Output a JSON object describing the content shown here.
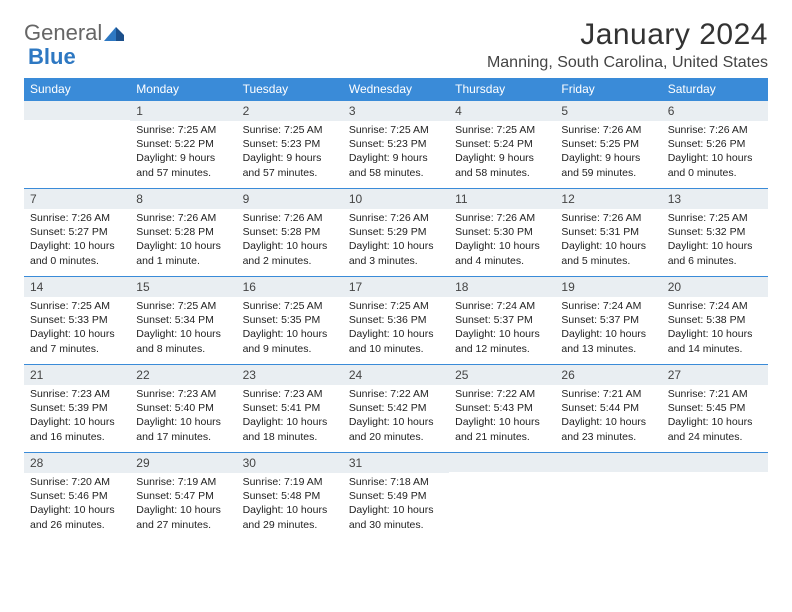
{
  "brand": {
    "part1": "General",
    "part2": "Blue"
  },
  "title": {
    "month": "January 2024",
    "location": "Manning, South Carolina, United States"
  },
  "colors": {
    "header_bg": "#3a8bd8",
    "daynum_bg": "#e9eef2",
    "border": "#3a8bd8"
  },
  "week_header_fontsize": 12,
  "daynum_fontsize": 12,
  "content_fontsize": 10.5,
  "weekdays": [
    "Sunday",
    "Monday",
    "Tuesday",
    "Wednesday",
    "Thursday",
    "Friday",
    "Saturday"
  ],
  "weeks": [
    [
      null,
      {
        "n": "1",
        "sunrise": "7:25 AM",
        "sunset": "5:22 PM",
        "daylight": "9 hours and 57 minutes."
      },
      {
        "n": "2",
        "sunrise": "7:25 AM",
        "sunset": "5:23 PM",
        "daylight": "9 hours and 57 minutes."
      },
      {
        "n": "3",
        "sunrise": "7:25 AM",
        "sunset": "5:23 PM",
        "daylight": "9 hours and 58 minutes."
      },
      {
        "n": "4",
        "sunrise": "7:25 AM",
        "sunset": "5:24 PM",
        "daylight": "9 hours and 58 minutes."
      },
      {
        "n": "5",
        "sunrise": "7:26 AM",
        "sunset": "5:25 PM",
        "daylight": "9 hours and 59 minutes."
      },
      {
        "n": "6",
        "sunrise": "7:26 AM",
        "sunset": "5:26 PM",
        "daylight": "10 hours and 0 minutes."
      }
    ],
    [
      {
        "n": "7",
        "sunrise": "7:26 AM",
        "sunset": "5:27 PM",
        "daylight": "10 hours and 0 minutes."
      },
      {
        "n": "8",
        "sunrise": "7:26 AM",
        "sunset": "5:28 PM",
        "daylight": "10 hours and 1 minute."
      },
      {
        "n": "9",
        "sunrise": "7:26 AM",
        "sunset": "5:28 PM",
        "daylight": "10 hours and 2 minutes."
      },
      {
        "n": "10",
        "sunrise": "7:26 AM",
        "sunset": "5:29 PM",
        "daylight": "10 hours and 3 minutes."
      },
      {
        "n": "11",
        "sunrise": "7:26 AM",
        "sunset": "5:30 PM",
        "daylight": "10 hours and 4 minutes."
      },
      {
        "n": "12",
        "sunrise": "7:26 AM",
        "sunset": "5:31 PM",
        "daylight": "10 hours and 5 minutes."
      },
      {
        "n": "13",
        "sunrise": "7:25 AM",
        "sunset": "5:32 PM",
        "daylight": "10 hours and 6 minutes."
      }
    ],
    [
      {
        "n": "14",
        "sunrise": "7:25 AM",
        "sunset": "5:33 PM",
        "daylight": "10 hours and 7 minutes."
      },
      {
        "n": "15",
        "sunrise": "7:25 AM",
        "sunset": "5:34 PM",
        "daylight": "10 hours and 8 minutes."
      },
      {
        "n": "16",
        "sunrise": "7:25 AM",
        "sunset": "5:35 PM",
        "daylight": "10 hours and 9 minutes."
      },
      {
        "n": "17",
        "sunrise": "7:25 AM",
        "sunset": "5:36 PM",
        "daylight": "10 hours and 10 minutes."
      },
      {
        "n": "18",
        "sunrise": "7:24 AM",
        "sunset": "5:37 PM",
        "daylight": "10 hours and 12 minutes."
      },
      {
        "n": "19",
        "sunrise": "7:24 AM",
        "sunset": "5:37 PM",
        "daylight": "10 hours and 13 minutes."
      },
      {
        "n": "20",
        "sunrise": "7:24 AM",
        "sunset": "5:38 PM",
        "daylight": "10 hours and 14 minutes."
      }
    ],
    [
      {
        "n": "21",
        "sunrise": "7:23 AM",
        "sunset": "5:39 PM",
        "daylight": "10 hours and 16 minutes."
      },
      {
        "n": "22",
        "sunrise": "7:23 AM",
        "sunset": "5:40 PM",
        "daylight": "10 hours and 17 minutes."
      },
      {
        "n": "23",
        "sunrise": "7:23 AM",
        "sunset": "5:41 PM",
        "daylight": "10 hours and 18 minutes."
      },
      {
        "n": "24",
        "sunrise": "7:22 AM",
        "sunset": "5:42 PM",
        "daylight": "10 hours and 20 minutes."
      },
      {
        "n": "25",
        "sunrise": "7:22 AM",
        "sunset": "5:43 PM",
        "daylight": "10 hours and 21 minutes."
      },
      {
        "n": "26",
        "sunrise": "7:21 AM",
        "sunset": "5:44 PM",
        "daylight": "10 hours and 23 minutes."
      },
      {
        "n": "27",
        "sunrise": "7:21 AM",
        "sunset": "5:45 PM",
        "daylight": "10 hours and 24 minutes."
      }
    ],
    [
      {
        "n": "28",
        "sunrise": "7:20 AM",
        "sunset": "5:46 PM",
        "daylight": "10 hours and 26 minutes."
      },
      {
        "n": "29",
        "sunrise": "7:19 AM",
        "sunset": "5:47 PM",
        "daylight": "10 hours and 27 minutes."
      },
      {
        "n": "30",
        "sunrise": "7:19 AM",
        "sunset": "5:48 PM",
        "daylight": "10 hours and 29 minutes."
      },
      {
        "n": "31",
        "sunrise": "7:18 AM",
        "sunset": "5:49 PM",
        "daylight": "10 hours and 30 minutes."
      },
      null,
      null,
      null
    ]
  ],
  "labels": {
    "sunrise": "Sunrise:",
    "sunset": "Sunset:",
    "daylight": "Daylight:"
  }
}
